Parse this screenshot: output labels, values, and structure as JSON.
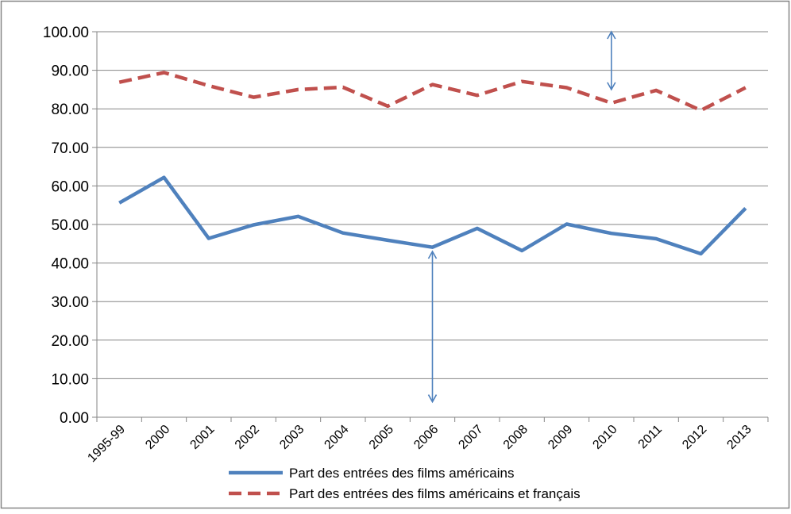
{
  "chart_data": {
    "type": "line",
    "title": "",
    "xlabel": "",
    "ylabel": "",
    "categories": [
      "1995-99",
      "2000",
      "2001",
      "2002",
      "2003",
      "2004",
      "2005",
      "2006",
      "2007",
      "2008",
      "2009",
      "2010",
      "2011",
      "2012",
      "2013"
    ],
    "ylim": [
      0,
      100
    ],
    "ytick_labels": [
      "0.00",
      "10.00",
      "20.00",
      "30.00",
      "40.00",
      "50.00",
      "60.00",
      "70.00",
      "80.00",
      "90.00",
      "100.00"
    ],
    "series": [
      {
        "name": "Part des entrées des films américains",
        "color": "#4F81BD",
        "style": "solid",
        "values": [
          55.6,
          62.2,
          46.4,
          49.9,
          52.1,
          47.8,
          45.9,
          44.1,
          49.0,
          43.2,
          50.1,
          47.7,
          46.3,
          42.4,
          54.2
        ]
      },
      {
        "name": "Part des entrées des films américains et français",
        "color": "#C0504D",
        "style": "dashed",
        "values": [
          86.9,
          89.4,
          86.0,
          83.0,
          85.0,
          85.6,
          80.7,
          86.3,
          83.5,
          87.1,
          85.5,
          81.5,
          84.8,
          79.6,
          85.5
        ]
      }
    ],
    "annotations": [
      {
        "type": "double-arrow",
        "category": "2006",
        "from": 4,
        "to": 43,
        "color": "#4F81BD"
      },
      {
        "type": "double-arrow",
        "category": "2010",
        "from": 85,
        "to": 100,
        "color": "#4F81BD"
      }
    ],
    "grid": true,
    "legend_position": "bottom"
  }
}
